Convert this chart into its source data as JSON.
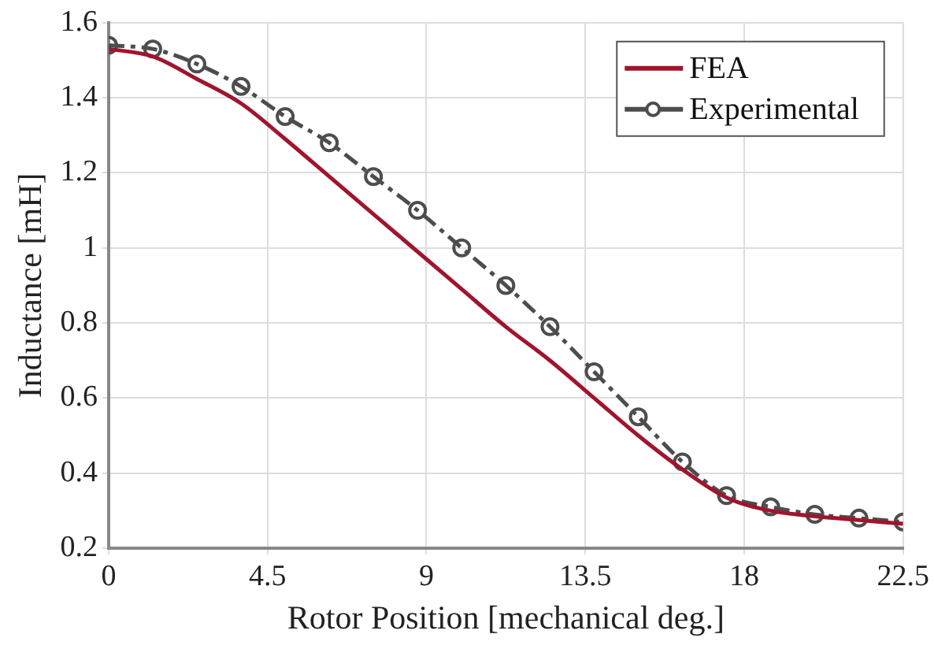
{
  "chart_data": {
    "type": "line",
    "xlabel": "Rotor Position [mechanical deg.]",
    "ylabel": "Inductance [mH]",
    "x": [
      0,
      1.25,
      2.5,
      3.75,
      5,
      6.25,
      7.5,
      8.75,
      10,
      11.25,
      12.5,
      13.75,
      15,
      16.25,
      17.5,
      18.75,
      20,
      21.25,
      22.5
    ],
    "series": [
      {
        "name": "FEA",
        "color": "#a0152e",
        "marker": "none",
        "line_style": "solid",
        "values": [
          1.53,
          1.51,
          1.45,
          1.385,
          1.29,
          1.19,
          1.09,
          0.99,
          0.89,
          0.79,
          0.7,
          0.6,
          0.5,
          0.41,
          0.335,
          0.3,
          0.285,
          0.275,
          0.265
        ]
      },
      {
        "name": "Experimental",
        "color": "#4d4d4d",
        "marker": "circle",
        "line_style": "dashed",
        "values": [
          1.54,
          1.53,
          1.49,
          1.43,
          1.35,
          1.28,
          1.19,
          1.1,
          1.0,
          0.9,
          0.79,
          0.67,
          0.55,
          0.43,
          0.34,
          0.31,
          0.29,
          0.28,
          0.27
        ]
      }
    ],
    "xlim": [
      0,
      22.5
    ],
    "xticks": [
      0,
      4.5,
      9,
      13.5,
      18,
      22.5
    ],
    "ylim": [
      0.2,
      1.6
    ],
    "yticks": [
      0.2,
      0.4,
      0.6,
      0.8,
      1,
      1.2,
      1.4,
      1.6
    ],
    "grid": true,
    "legend": "top right"
  }
}
